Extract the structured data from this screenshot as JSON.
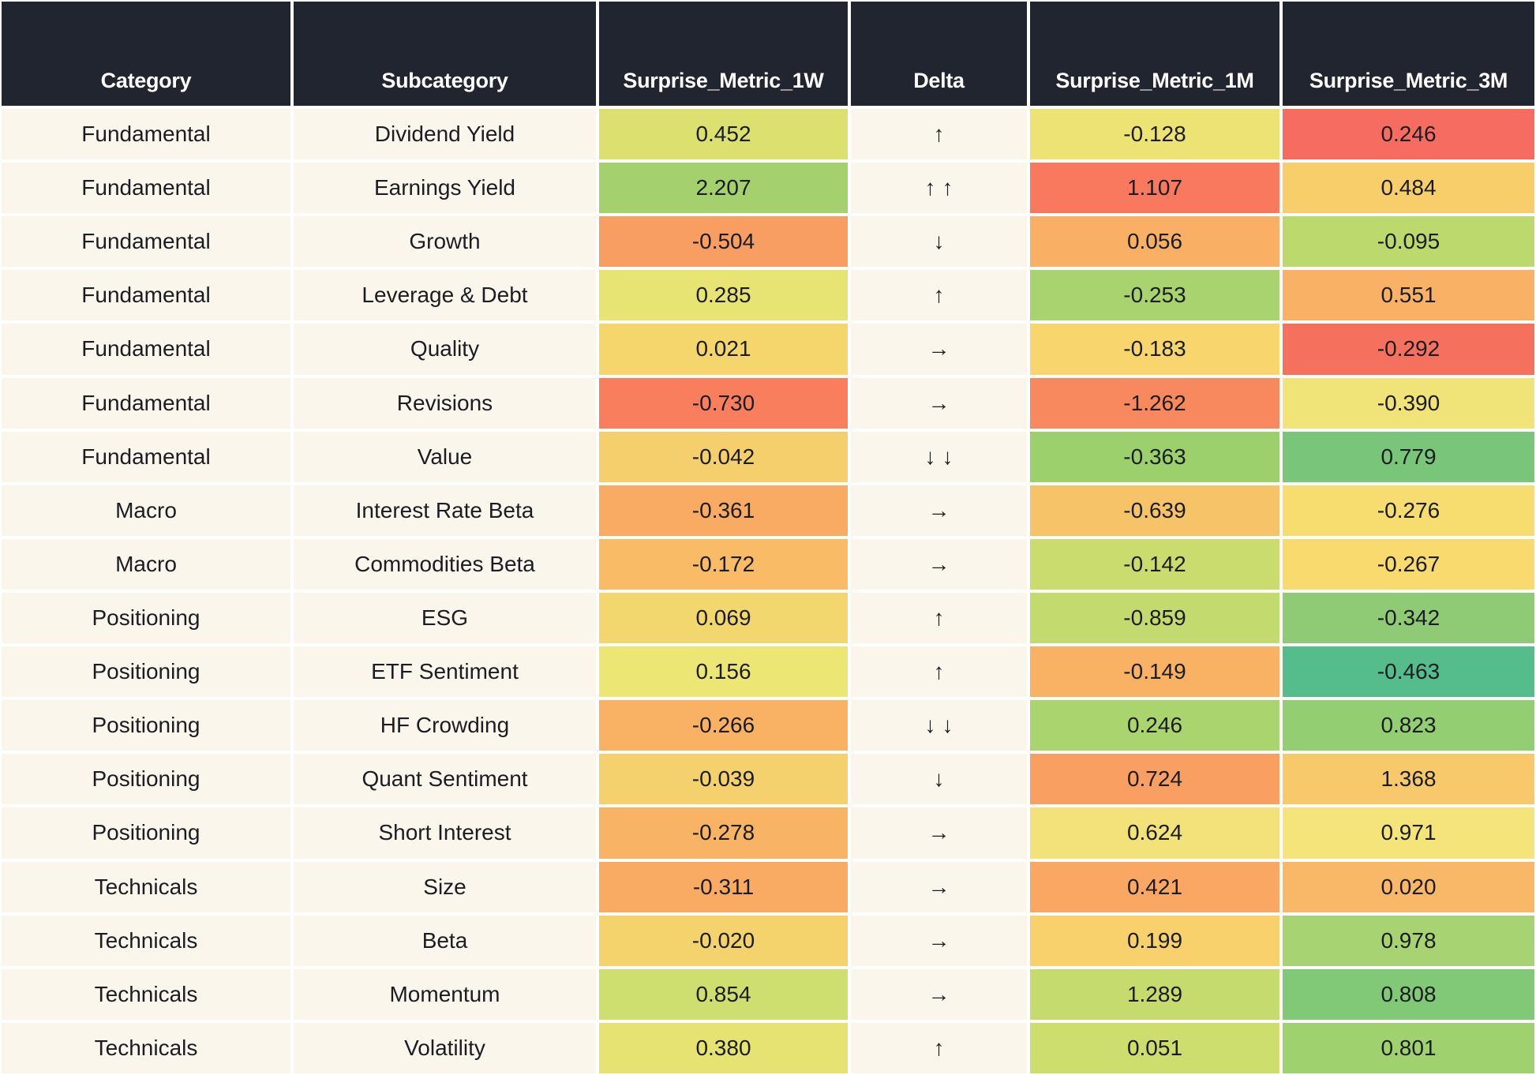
{
  "theme": {
    "header_bg": "#212530",
    "header_text": "#ffffff",
    "label_cell_bg": "#faf6ec",
    "grid_color": "#ffffff",
    "text_color": "#1b1d22"
  },
  "chart_data": {
    "type": "table",
    "title": "",
    "columns": [
      "Category",
      "Subcategory",
      "Surprise_Metric_1W",
      "Delta",
      "Surprise_Metric_1M",
      "Surprise_Metric_3M"
    ],
    "rows": [
      {
        "category": "Fundamental",
        "subcategory": "Dividend Yield",
        "m1w": "0.452",
        "delta": "↑",
        "m1m": "-0.128",
        "m3m": "0.246",
        "colors": {
          "m1w": "#dce06f",
          "m1m": "#ede274",
          "m3m": "#f66c60"
        }
      },
      {
        "category": "Fundamental",
        "subcategory": "Earnings Yield",
        "m1w": "2.207",
        "delta": "↑↑",
        "m1m": "1.107",
        "m3m": "0.484",
        "colors": {
          "m1w": "#a5d06e",
          "m1m": "#f8795d",
          "m3m": "#f8ce6b"
        }
      },
      {
        "category": "Fundamental",
        "subcategory": "Growth",
        "m1w": "-0.504",
        "delta": "↓",
        "m1m": "0.056",
        "m3m": "-0.095",
        "colors": {
          "m1w": "#f89e62",
          "m1m": "#f9b065",
          "m3m": "#bcd96d"
        }
      },
      {
        "category": "Fundamental",
        "subcategory": "Leverage & Debt",
        "m1w": "0.285",
        "delta": "↑",
        "m1m": "-0.253",
        "m3m": "0.551",
        "colors": {
          "m1w": "#e8e473",
          "m1m": "#a8d36e",
          "m3m": "#f9b166"
        }
      },
      {
        "category": "Fundamental",
        "subcategory": "Quality",
        "m1w": "0.021",
        "delta": "→",
        "m1m": "-0.183",
        "m3m": "-0.292",
        "colors": {
          "m1w": "#f4d66d",
          "m1m": "#f9d56e",
          "m3m": "#f6715d"
        }
      },
      {
        "category": "Fundamental",
        "subcategory": "Revisions",
        "m1w": "-0.730",
        "delta": "→",
        "m1m": "-1.262",
        "m3m": "-0.390",
        "colors": {
          "m1w": "#f87e5e",
          "m1m": "#f8895f",
          "m3m": "#f0e377"
        }
      },
      {
        "category": "Fundamental",
        "subcategory": "Value",
        "m1w": "-0.042",
        "delta": "↓↓",
        "m1m": "-0.363",
        "m3m": "0.779",
        "colors": {
          "m1w": "#f5cf6b",
          "m1m": "#9bd06d",
          "m3m": "#79c67a"
        }
      },
      {
        "category": "Macro",
        "subcategory": "Interest Rate Beta",
        "m1w": "-0.361",
        "delta": "→",
        "m1m": "-0.639",
        "m3m": "-0.276",
        "colors": {
          "m1w": "#f9aa63",
          "m1m": "#f7c368",
          "m3m": "#f7dc70"
        }
      },
      {
        "category": "Macro",
        "subcategory": "Commodities Beta",
        "m1w": "-0.172",
        "delta": "→",
        "m1m": "-0.142",
        "m3m": "-0.267",
        "colors": {
          "m1w": "#f9bb66",
          "m1m": "#cbdc6e",
          "m3m": "#f8da6e"
        }
      },
      {
        "category": "Positioning",
        "subcategory": "ESG",
        "m1w": "0.069",
        "delta": "↑",
        "m1m": "-0.859",
        "m3m": "-0.342",
        "colors": {
          "m1w": "#f2d66e",
          "m1m": "#c3da6e",
          "m3m": "#8ecb74"
        }
      },
      {
        "category": "Positioning",
        "subcategory": "ETF Sentiment",
        "m1w": "0.156",
        "delta": "↑",
        "m1m": "-0.149",
        "m3m": "-0.463",
        "colors": {
          "m1w": "#ece774",
          "m1m": "#f9b264",
          "m3m": "#55bd8c"
        }
      },
      {
        "category": "Positioning",
        "subcategory": "HF Crowding",
        "m1w": "-0.266",
        "delta": "↓↓",
        "m1m": "0.246",
        "m3m": "0.823",
        "colors": {
          "m1w": "#f9b164",
          "m1m": "#aad46e",
          "m3m": "#94ce72"
        }
      },
      {
        "category": "Positioning",
        "subcategory": "Quant Sentiment",
        "m1w": "-0.039",
        "delta": "↓",
        "m1m": "0.724",
        "m3m": "1.368",
        "colors": {
          "m1w": "#f4d16c",
          "m1m": "#f99f61",
          "m3m": "#f8c96a"
        }
      },
      {
        "category": "Positioning",
        "subcategory": "Short Interest",
        "m1w": "-0.278",
        "delta": "→",
        "m1m": "0.624",
        "m3m": "0.971",
        "colors": {
          "m1w": "#f9b365",
          "m1m": "#f3e179",
          "m3m": "#f4e479"
        }
      },
      {
        "category": "Technicals",
        "subcategory": "Size",
        "m1w": "-0.311",
        "delta": "→",
        "m1m": "0.421",
        "m3m": "0.020",
        "colors": {
          "m1w": "#f9aa63",
          "m1m": "#f9a763",
          "m3m": "#f9b768"
        }
      },
      {
        "category": "Technicals",
        "subcategory": "Beta",
        "m1w": "-0.020",
        "delta": "→",
        "m1m": "0.199",
        "m3m": "0.978",
        "colors": {
          "m1w": "#f4d26c",
          "m1m": "#f8d06c",
          "m3m": "#a8d372"
        }
      },
      {
        "category": "Technicals",
        "subcategory": "Momentum",
        "m1w": "0.854",
        "delta": "→",
        "m1m": "1.289",
        "m3m": "0.808",
        "colors": {
          "m1w": "#cedf6f",
          "m1m": "#c6db6e",
          "m3m": "#81c877"
        }
      },
      {
        "category": "Technicals",
        "subcategory": "Volatility",
        "m1w": "0.380",
        "delta": "↑",
        "m1m": "0.051",
        "m3m": "0.801",
        "colors": {
          "m1w": "#e6e372",
          "m1m": "#cddd6e",
          "m3m": "#a0d16f"
        }
      }
    ]
  }
}
